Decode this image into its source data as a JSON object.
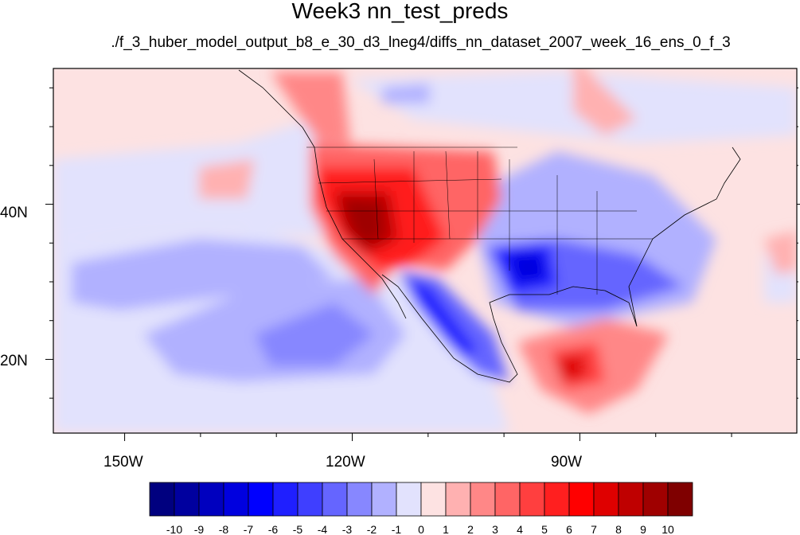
{
  "title": "Week3 nn_test_preds",
  "subtitle": "./f_3_huber_model_output_b8_e_30_d3_lneg4/diffs_nn_dataset_2007_week_16_ens_0_f_3",
  "map": {
    "x_ticks": [
      {
        "label": "150W",
        "lon": -150
      },
      {
        "label": "120W",
        "lon": -120
      },
      {
        "label": "90W",
        "lon": -90
      }
    ],
    "y_ticks": [
      {
        "label": "40N",
        "lat": 40
      },
      {
        "label": "20N",
        "lat": 20
      }
    ],
    "lon_range": [
      -159.4,
      -61.4
    ],
    "lat_range": [
      10.5,
      57.5
    ]
  },
  "colorbar": {
    "labels": [
      "-10",
      "-9",
      "-8",
      "-7",
      "-6",
      "-5",
      "-4",
      "-3",
      "-2",
      "-1",
      "0",
      "1",
      "2",
      "3",
      "4",
      "5",
      "6",
      "7",
      "8",
      "9",
      "10"
    ],
    "colors": [
      "#00007f",
      "#00009f",
      "#0000bf",
      "#0000df",
      "#0000ff",
      "#1f1fff",
      "#3f3fff",
      "#6565ff",
      "#8787ff",
      "#b1b1ff",
      "#e2e2fd",
      "#fde2e2",
      "#ffb1b1",
      "#ff8787",
      "#ff6565",
      "#ff3f3f",
      "#ff1f1f",
      "#ff0000",
      "#df0000",
      "#bf0000",
      "#9f0000",
      "#7f0000"
    ]
  }
}
